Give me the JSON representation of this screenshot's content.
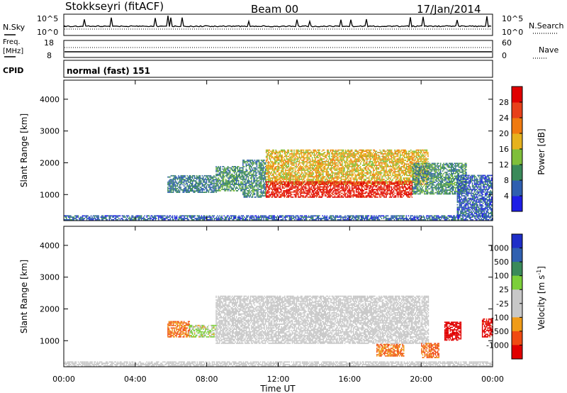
{
  "header": {
    "title": "Stokkseyri (fitACF)",
    "beam": "Beam 00",
    "date": "17/Jan/2014"
  },
  "nsky_panel": {
    "left_label": "N.Sky",
    "left_top": "10^5",
    "left_bottom": "10^0",
    "right_top": "10^5",
    "right_bottom": "10^0",
    "right_label": "N.Search"
  },
  "freq_panel": {
    "left_label_1": "Freq.",
    "left_label_2": "[MHz]",
    "left_top": "18",
    "left_bottom": "8",
    "right_top": "60",
    "right_bottom": "0",
    "right_label": "Nave"
  },
  "cpid_panel": {
    "label": "CPID",
    "mode": "normal (fast) 151"
  },
  "colors": {
    "power": [
      "#1e1ee6",
      "#2f5fb0",
      "#3a8a5a",
      "#7fbf3a",
      "#e6b21e",
      "#f07a10",
      "#e8401a",
      "#e00000"
    ],
    "velocity": [
      "#e00000",
      "#f04a12",
      "#f09b18",
      "#c8c8c8",
      "#c8c8c8",
      "#7ccf3a",
      "#3a8a5a",
      "#3060b0",
      "#1e2ec8"
    ],
    "ground_scatter": "#c8c8c8"
  },
  "chart_data": [
    {
      "type": "heatmap",
      "name": "power",
      "xlabel": "",
      "ylabel": "Slant Range [km]",
      "x_ticks": [
        "00:00",
        "04:00",
        "08:00",
        "12:00",
        "16:00",
        "20:00",
        "00:00"
      ],
      "x_range_hours": [
        0,
        24
      ],
      "y_ticks": [
        1000,
        2000,
        3000,
        4000
      ],
      "ylim": [
        180,
        4600
      ],
      "colorbar_label": "Power [dB]",
      "colorbar_ticks": [
        4,
        8,
        12,
        16,
        20,
        24,
        28
      ],
      "colorbar_range": [
        0,
        32
      ],
      "regions": [
        {
          "t0": 5.8,
          "t1": 8.5,
          "r0": 1050,
          "r1": 1600,
          "dB": 8
        },
        {
          "t0": 8.5,
          "t1": 10.0,
          "r0": 1100,
          "r1": 1900,
          "dB": 10
        },
        {
          "t0": 10.0,
          "t1": 11.3,
          "r0": 900,
          "r1": 2100,
          "dB": 9
        },
        {
          "t0": 11.3,
          "t1": 20.4,
          "r0": 1300,
          "r1": 2400,
          "dB": 18
        },
        {
          "t0": 11.3,
          "t1": 19.5,
          "r0": 900,
          "r1": 1400,
          "dB": 28
        },
        {
          "t0": 19.5,
          "t1": 22.5,
          "r0": 1000,
          "r1": 2000,
          "dB": 10
        },
        {
          "t0": 22.0,
          "t1": 24.0,
          "r0": 300,
          "r1": 1600,
          "dB": 6
        },
        {
          "t0": 0.0,
          "t1": 24.0,
          "r0": 190,
          "r1": 320,
          "dB": 6
        }
      ]
    },
    {
      "type": "heatmap",
      "name": "velocity",
      "xlabel": "Time UT",
      "ylabel": "Slant Range [km]",
      "x_ticks": [
        "00:00",
        "04:00",
        "08:00",
        "12:00",
        "16:00",
        "20:00",
        "00:00"
      ],
      "x_range_hours": [
        0,
        24
      ],
      "y_ticks": [
        1000,
        2000,
        3000,
        4000
      ],
      "ylim": [
        180,
        4600
      ],
      "colorbar_label": "Velocity [m s^-1]",
      "colorbar_ticks": [
        1000,
        500,
        100,
        25,
        -25,
        -100,
        -500,
        -1000
      ],
      "regions": [
        {
          "t0": 5.8,
          "t1": 7.0,
          "r0": 1100,
          "r1": 1600,
          "v": -300
        },
        {
          "t0": 7.0,
          "t1": 8.5,
          "r0": 1100,
          "r1": 1500,
          "v": 80
        },
        {
          "t0": 8.5,
          "t1": 20.4,
          "r0": 900,
          "r1": 2400,
          "v": 0
        },
        {
          "t0": 17.5,
          "t1": 19.0,
          "r0": 500,
          "r1": 900,
          "v": -300
        },
        {
          "t0": 20.0,
          "t1": 21.0,
          "r0": 450,
          "r1": 900,
          "v": -400
        },
        {
          "t0": 21.3,
          "t1": 22.2,
          "r0": 1000,
          "r1": 1600,
          "v": -1000
        },
        {
          "t0": 23.4,
          "t1": 24.0,
          "r0": 1100,
          "r1": 1700,
          "v": -900
        },
        {
          "t0": 0.0,
          "t1": 24.0,
          "r0": 190,
          "r1": 320,
          "v": 0
        }
      ]
    }
  ]
}
